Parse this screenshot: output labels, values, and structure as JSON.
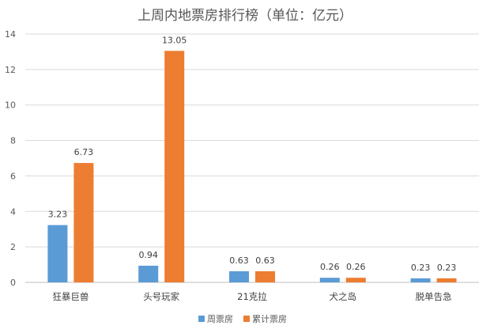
{
  "chart_data": {
    "type": "bar",
    "title": "上周内地票房排行榜（单位：亿元）",
    "categories": [
      "狂暴巨兽",
      "头号玩家",
      "21克拉",
      "犬之岛",
      "脱单告急"
    ],
    "series": [
      {
        "name": "周票房",
        "values": [
          3.23,
          0.94,
          0.63,
          0.26,
          0.23
        ],
        "color": "#5b9bd5"
      },
      {
        "name": "累计票房",
        "values": [
          6.73,
          13.05,
          0.63,
          0.26,
          0.23
        ],
        "color": "#ed7d31"
      }
    ],
    "data_labels": [
      [
        "3.23",
        "0.94",
        "0.63",
        "0.26",
        "0.23"
      ],
      [
        "6.73",
        "13.05",
        "0.63",
        "0.26",
        "0.23"
      ]
    ],
    "ylim": [
      0,
      14
    ],
    "yticks": [
      0,
      2,
      4,
      6,
      8,
      10,
      12,
      14
    ],
    "grid": true,
    "legend_position": "bottom"
  }
}
